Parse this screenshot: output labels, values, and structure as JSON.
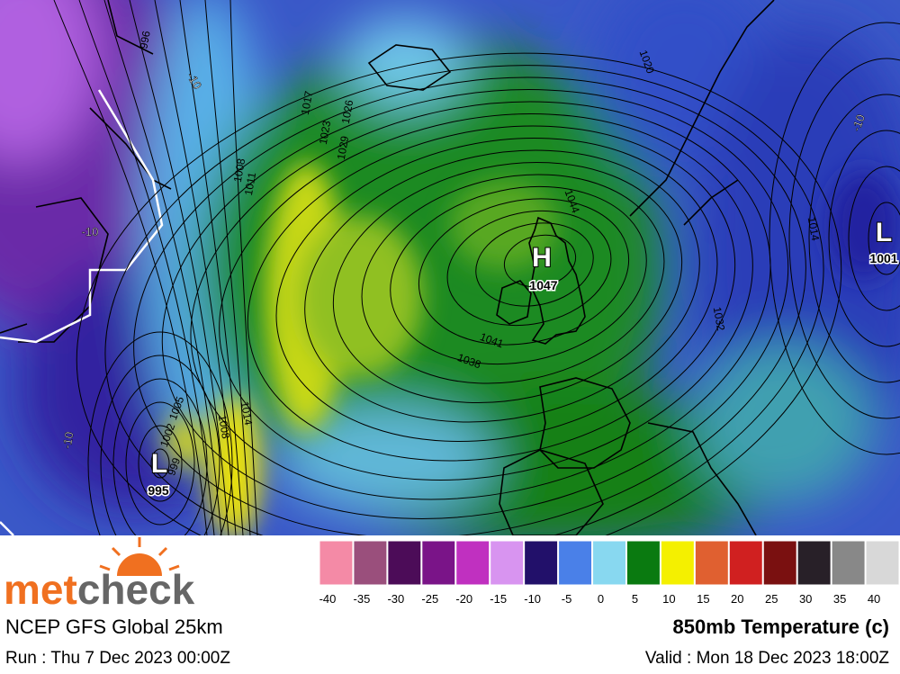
{
  "logo": {
    "part1": "met",
    "part2": "check"
  },
  "model": "NCEP GFS Global 25km",
  "run": "Run : Thu 7 Dec 2023 00:00Z",
  "product": "850mb Temperature (c)",
  "valid": "Valid : Mon 18 Dec 2023 18:00Z",
  "color_scale": {
    "labels": [
      -40,
      -35,
      -30,
      -25,
      -20,
      -15,
      -10,
      -5,
      0,
      5,
      10,
      15,
      20,
      25,
      30,
      35,
      40
    ],
    "colors": [
      "#f48aa6",
      "#9a4f7c",
      "#4c0c58",
      "#7a1488",
      "#c030c0",
      "#d894f0",
      "#22106a",
      "#4a80e8",
      "#88d8f0",
      "#0a7a10",
      "#f4f000",
      "#e06030",
      "#d02020",
      "#7a1010",
      "#282028",
      "#888888",
      "#d8d8d8"
    ]
  },
  "pressure_centers": [
    {
      "symbol": "H",
      "value": "1047"
    },
    {
      "symbol": "L",
      "value": "1001"
    },
    {
      "symbol": "L",
      "value": "995"
    }
  ],
  "isobar_labels": [
    "996",
    "1008",
    "1011",
    "1017",
    "1023",
    "1026",
    "1029",
    "1044",
    "1041",
    "1038",
    "1032",
    "1020",
    "1014",
    "1008",
    "1014",
    "1005",
    "1002",
    "999"
  ],
  "temperature_labels": [
    "-10",
    "-10",
    "-10",
    "-10"
  ]
}
